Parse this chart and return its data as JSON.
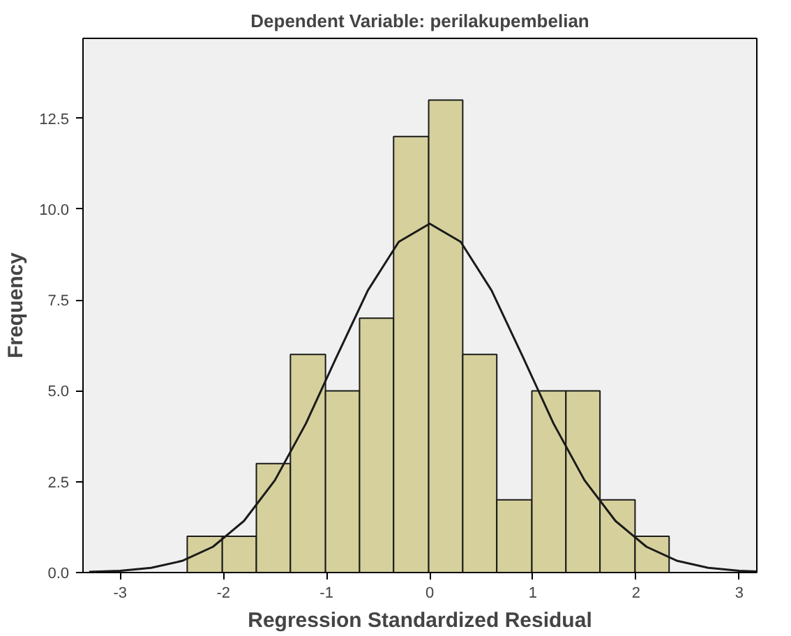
{
  "chart_data": {
    "type": "histogram",
    "title": "Dependent Variable: perilakupembelian",
    "xlabel": "Regression Standardized Residual",
    "ylabel": "Frequency",
    "bins": [
      -2.35,
      -2.01,
      -1.68,
      -1.35,
      -1.01,
      -0.68,
      -0.35,
      -0.01,
      0.32,
      0.65,
      0.99,
      1.32,
      1.65,
      1.99,
      2.32
    ],
    "values": [
      1,
      1,
      3,
      6,
      5,
      7,
      12,
      13,
      6,
      2,
      5,
      5,
      2,
      1
    ],
    "color": "#d6d19c",
    "series": [
      {
        "type": "line",
        "color": "#1a1a1a",
        "x": [
          -3.3,
          -3.0,
          -2.7,
          -2.4,
          -2.1,
          -1.8,
          -1.5,
          -1.2,
          -0.9,
          -0.6,
          -0.3,
          0.0,
          0.3,
          0.6,
          0.9,
          1.2,
          1.5,
          1.8,
          2.1,
          2.4,
          2.7,
          3.0,
          3.17
        ],
        "values": [
          0.02,
          0.05,
          0.13,
          0.32,
          0.71,
          1.42,
          2.54,
          4.1,
          5.95,
          7.76,
          9.1,
          9.6,
          9.1,
          7.76,
          5.95,
          4.1,
          2.54,
          1.42,
          0.71,
          0.32,
          0.13,
          0.05,
          0.03
        ]
      }
    ],
    "xlim": [
      -3.36,
      3.17
    ],
    "ylim": [
      0,
      14.7
    ],
    "xticks": [
      -3,
      -2,
      -1,
      0,
      1,
      2,
      3
    ],
    "yticks": [
      {
        "value": 0,
        "label": "0.0"
      },
      {
        "value": 2.5,
        "label": "2.5"
      },
      {
        "value": 5,
        "label": "5.0"
      },
      {
        "value": 7.5,
        "label": "7.5"
      },
      {
        "value": 10,
        "label": "10.0"
      },
      {
        "value": 12.5,
        "label": "12.5"
      }
    ],
    "grid": false
  }
}
